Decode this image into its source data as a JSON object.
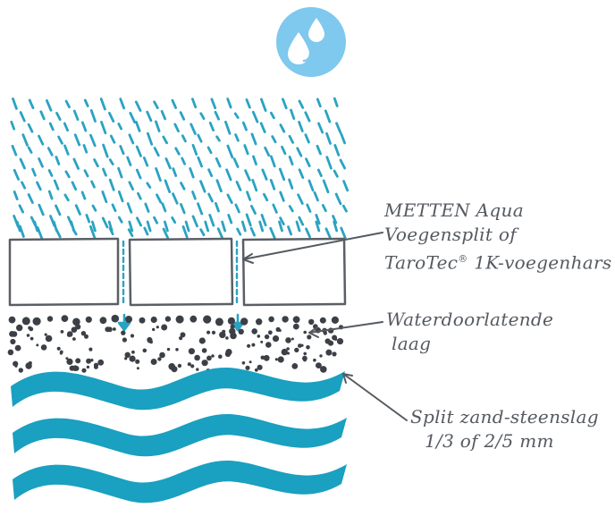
{
  "icon": {
    "name": "water-drops-icon",
    "color": "#7fc8ee"
  },
  "colors": {
    "rain": "#2aa3c2",
    "water": "#1aa0c0",
    "outline": "#5a5f66",
    "gravel": "#3c4046",
    "label": "#555a60"
  },
  "labels": {
    "joint": {
      "line1": "METTEN Aqua",
      "line2": "Voegensplit of",
      "line3_a": "TaroTec",
      "line3_sup": "®",
      "line3_b": " 1K-voegenhars"
    },
    "permeable_layer": {
      "line1": "Waterdoorlatende",
      "line2": "laag"
    },
    "base": {
      "line1": "Split zand-steenslag",
      "line2": "1/3 of 2/5 mm"
    }
  }
}
